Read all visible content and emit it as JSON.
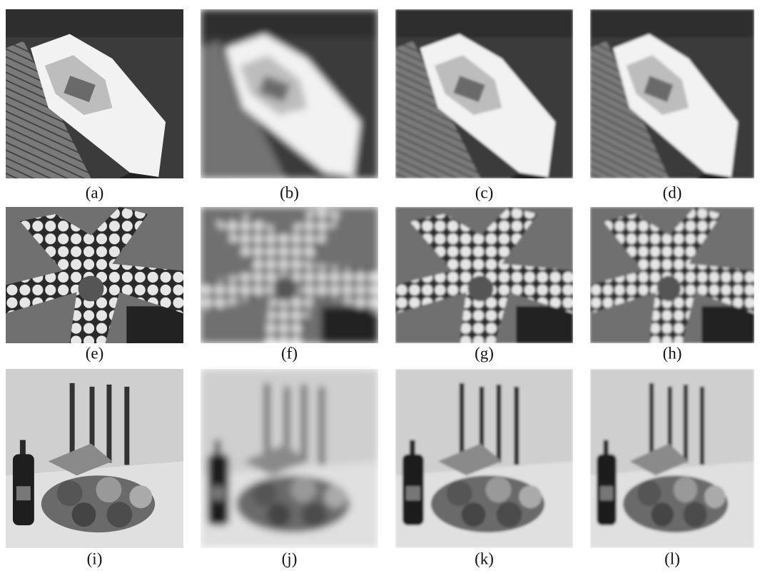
{
  "figure": {
    "panels": [
      [
        "(a)",
        "(b)",
        "(c)",
        "(d)"
      ],
      [
        "(e)",
        "(f)",
        "(g)",
        "(h)"
      ],
      [
        "(i)",
        "(j)",
        "(k)",
        "(l)"
      ]
    ]
  }
}
